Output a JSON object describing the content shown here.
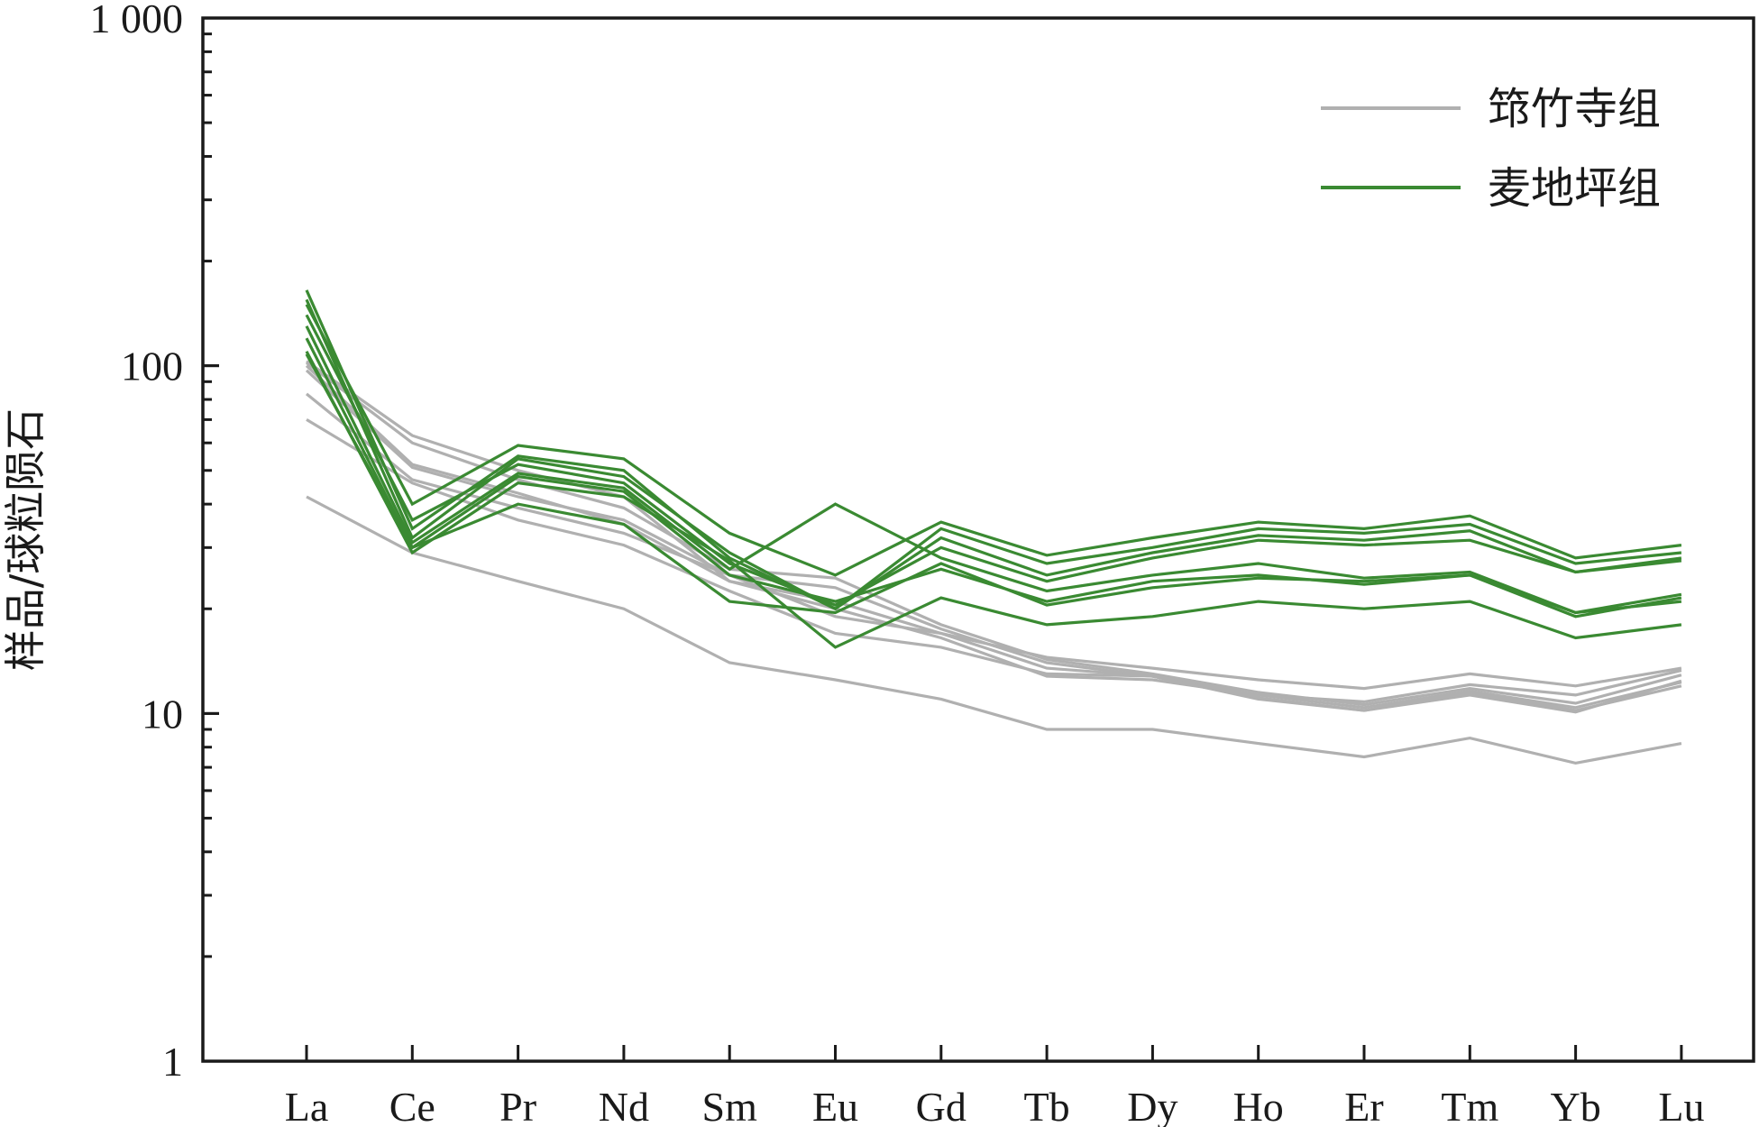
{
  "chart_data": {
    "type": "line",
    "y_scale": "log",
    "ylim": [
      1,
      1000
    ],
    "ylabel": "样品/球粒陨石",
    "xlabel": "",
    "grid": false,
    "legend_position": "top-right",
    "y_ticks": [
      {
        "value": 1,
        "label": "1"
      },
      {
        "value": 10,
        "label": "10"
      },
      {
        "value": 100,
        "label": "100"
      },
      {
        "value": 1000,
        "label": "1 000"
      }
    ],
    "categories": [
      "La",
      "Ce",
      "Pr",
      "Nd",
      "Sm",
      "Eu",
      "Gd",
      "Tb",
      "Dy",
      "Ho",
      "Er",
      "Tm",
      "Yb",
      "Lu"
    ],
    "groups": [
      {
        "name": "筇竹寺组",
        "color": "#b0b0b0"
      },
      {
        "name": "麦地坪组",
        "color": "#3a8a32"
      }
    ],
    "series": [
      {
        "group": 0,
        "values": [
          100,
          52,
          43,
          35,
          24,
          21,
          17,
          13.5,
          12.8,
          11.3,
          10.4,
          11.6,
          10.4,
          12.3
        ]
      },
      {
        "group": 0,
        "values": [
          97,
          51,
          42,
          36,
          25,
          23,
          17.5,
          14,
          12.8,
          11.1,
          10.2,
          11.3,
          10.1,
          12.4
        ]
      },
      {
        "group": 0,
        "values": [
          102,
          60,
          47,
          39,
          26,
          24.5,
          18,
          14.3,
          13,
          11.5,
          10.6,
          11.8,
          10.7,
          12.9
        ]
      },
      {
        "group": 0,
        "values": [
          103,
          63,
          50,
          42,
          24,
          20,
          16.5,
          12.8,
          12.5,
          11.3,
          10.8,
          12.1,
          11.3,
          13.3
        ]
      },
      {
        "group": 0,
        "values": [
          83,
          47,
          39,
          33,
          25,
          19,
          17,
          14.5,
          13.5,
          12.5,
          11.8,
          13,
          12,
          13.5
        ]
      },
      {
        "group": 0,
        "values": [
          70,
          46,
          36,
          30.5,
          22.5,
          17,
          15.5,
          13,
          12.8,
          11,
          10.2,
          11.5,
          10.2,
          12
        ]
      },
      {
        "group": 0,
        "values": [
          42,
          29,
          24,
          20,
          14,
          12.5,
          11,
          9,
          9,
          8.2,
          7.5,
          8.5,
          7.2,
          8.2
        ]
      },
      {
        "group": 1,
        "values": [
          165,
          34,
          55,
          50,
          28,
          20,
          34,
          27,
          30,
          34,
          33,
          35,
          27,
          29
        ]
      },
      {
        "group": 1,
        "values": [
          155,
          32,
          54,
          48,
          29,
          20,
          32,
          25,
          29,
          32.5,
          31.5,
          33.5,
          25.5,
          28
        ]
      },
      {
        "group": 1,
        "values": [
          150,
          40,
          59,
          54,
          33,
          25,
          35.5,
          28.5,
          32,
          35.5,
          34,
          37,
          28,
          30.5
        ]
      },
      {
        "group": 1,
        "values": [
          140,
          36,
          52,
          46,
          27,
          20.5,
          30,
          24,
          28,
          31.5,
          30.5,
          31.5,
          25.5,
          27.5
        ]
      },
      {
        "group": 1,
        "values": [
          130,
          31,
          49,
          44.5,
          26,
          40,
          28,
          22.5,
          25,
          27,
          24.5,
          25.5,
          19.5,
          22
        ]
      },
      {
        "group": 1,
        "values": [
          120,
          30,
          48,
          43.5,
          25,
          21,
          26,
          21,
          24,
          25,
          23.5,
          25,
          19,
          21.5
        ]
      },
      {
        "group": 1,
        "values": [
          110,
          29,
          46,
          42,
          27.5,
          15.5,
          21.5,
          18,
          19,
          21,
          20,
          21,
          16.5,
          18
        ]
      },
      {
        "group": 1,
        "values": [
          108,
          30,
          40,
          35,
          21,
          19.5,
          27,
          20.5,
          23,
          24.5,
          24,
          25,
          19.5,
          21
        ]
      }
    ]
  }
}
